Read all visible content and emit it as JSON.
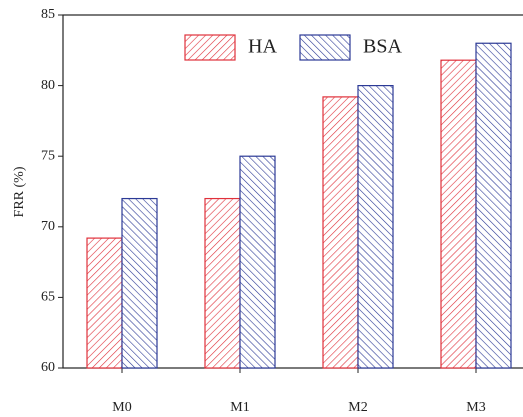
{
  "chart_data": {
    "type": "bar",
    "y_label": "FRR (%)",
    "categories": [
      "M0",
      "M1",
      "M2",
      "M3"
    ],
    "series": [
      {
        "name": "HA",
        "color": "#e0313b",
        "values": [
          69.2,
          72,
          79.2,
          81.8
        ]
      },
      {
        "name": "BSA",
        "color": "#2c3a96",
        "values": [
          72,
          75,
          80,
          83
        ]
      }
    ],
    "ylim": [
      60,
      85
    ],
    "yticks": [
      60,
      65,
      70,
      75,
      80,
      85
    ],
    "grid": false
  }
}
